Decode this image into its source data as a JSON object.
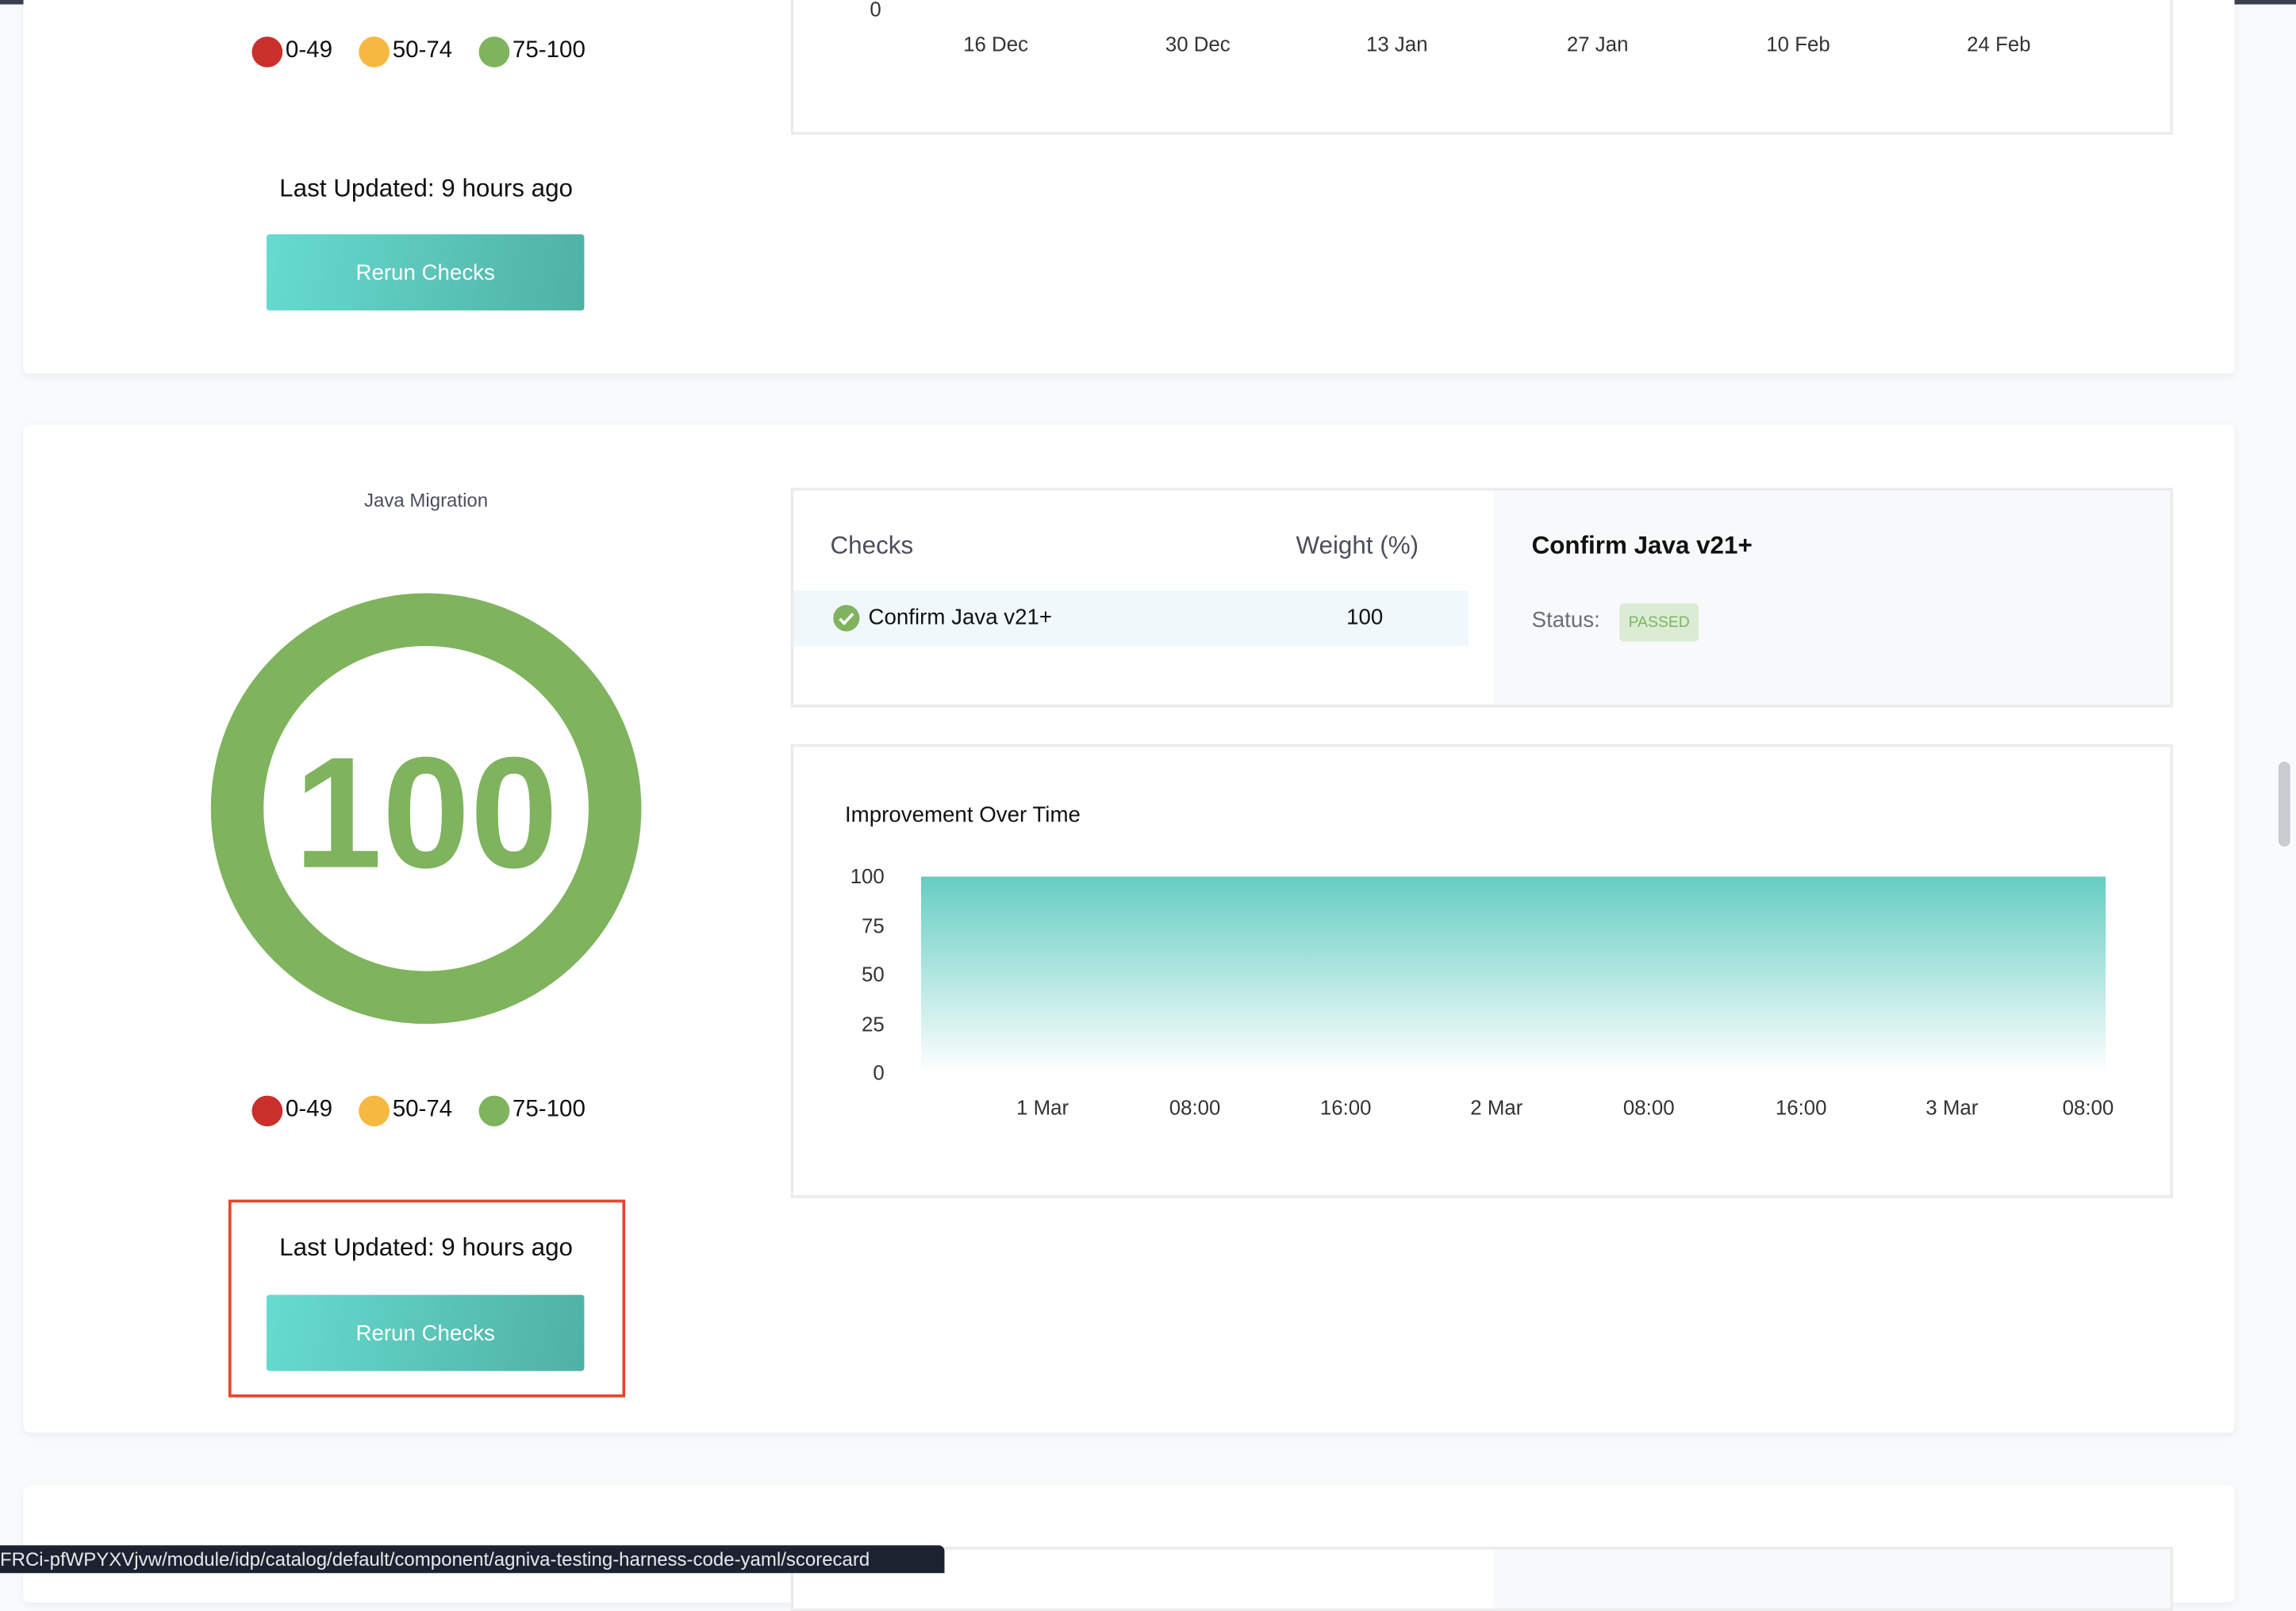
{
  "legend": [
    {
      "label": "0-49",
      "color": "#c9302c"
    },
    {
      "label": "50-74",
      "color": "#f5b942"
    },
    {
      "label": "75-100",
      "color": "#7fb35e"
    }
  ],
  "cards": [
    {
      "last_updated": "Last Updated: 9 hours ago",
      "rerun_label": "Rerun Checks"
    },
    {
      "title": "Java Migration",
      "score": "100",
      "score_color": "#7fb35e",
      "last_updated": "Last Updated: 9 hours ago",
      "rerun_label": "Rerun Checks",
      "checks_table": {
        "headers": [
          "Checks",
          "Weight (%)"
        ],
        "rows": [
          {
            "name": "Confirm Java v21+",
            "weight": "100",
            "icon": "check-circle-icon"
          }
        ]
      },
      "detail": {
        "title": "Confirm Java v21+",
        "status_label": "Status:",
        "status": "PASSED"
      }
    }
  ],
  "chart_data": [
    {
      "type": "area",
      "y_ticks": [
        "0"
      ],
      "x_ticks": [
        "16 Dec",
        "30 Dec",
        "13 Jan",
        "27 Jan",
        "10 Feb",
        "24 Feb"
      ]
    },
    {
      "type": "area",
      "title": "Improvement Over Time",
      "ylim": [
        0,
        100
      ],
      "y_ticks": [
        "100",
        "75",
        "50",
        "25",
        "0"
      ],
      "x_ticks": [
        "1 Mar",
        "08:00",
        "16:00",
        "2 Mar",
        "08:00",
        "16:00",
        "3 Mar",
        "08:00"
      ],
      "points": [
        {
          "x": "28 Feb 17:30",
          "y": 100
        },
        {
          "x": "3 Mar 09:00",
          "y": 100
        }
      ],
      "color": "#66cdc3",
      "grid": false
    }
  ],
  "status_bar_url": "FRCi-pfWPYXVjvw/module/idp/catalog/default/component/agniva-testing-harness-code-yaml/scorecard"
}
